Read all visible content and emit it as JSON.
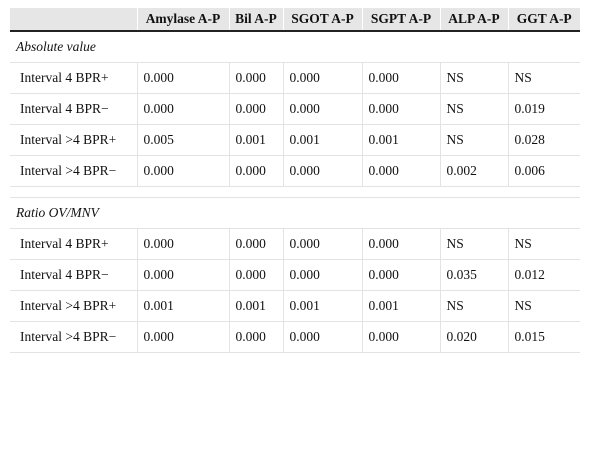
{
  "table": {
    "columns": [
      "Amylase A-P",
      "Bil A-P",
      "SGOT A-P",
      "SGPT A-P",
      "ALP A-P",
      "GGT A-P"
    ],
    "sections": [
      {
        "title": "Absolute value",
        "rows": [
          {
            "label": "Interval 4 BPR+",
            "values": [
              "0.000",
              "0.000",
              "0.000",
              "0.000",
              "NS",
              "NS"
            ]
          },
          {
            "label": "Interval 4 BPR−",
            "values": [
              "0.000",
              "0.000",
              "0.000",
              "0.000",
              "NS",
              "0.019"
            ]
          },
          {
            "label": "Interval >4 BPR+",
            "values": [
              "0.005",
              "0.001",
              "0.001",
              "0.001",
              "NS",
              "0.028"
            ]
          },
          {
            "label": "Interval >4 BPR−",
            "values": [
              "0.000",
              "0.000",
              "0.000",
              "0.000",
              "0.002",
              "0.006"
            ]
          }
        ]
      },
      {
        "title": "Ratio OV/MNV",
        "rows": [
          {
            "label": "Interval 4 BPR+",
            "values": [
              "0.000",
              "0.000",
              "0.000",
              "0.000",
              "NS",
              "NS"
            ]
          },
          {
            "label": "Interval 4 BPR−",
            "values": [
              "0.000",
              "0.000",
              "0.000",
              "0.000",
              "0.035",
              "0.012"
            ]
          },
          {
            "label": "Interval >4 BPR+",
            "values": [
              "0.001",
              "0.001",
              "0.001",
              "0.001",
              "NS",
              "NS"
            ]
          },
          {
            "label": "Interval >4 BPR−",
            "values": [
              "0.000",
              "0.000",
              "0.000",
              "0.000",
              "0.020",
              "0.015"
            ]
          }
        ]
      }
    ]
  }
}
